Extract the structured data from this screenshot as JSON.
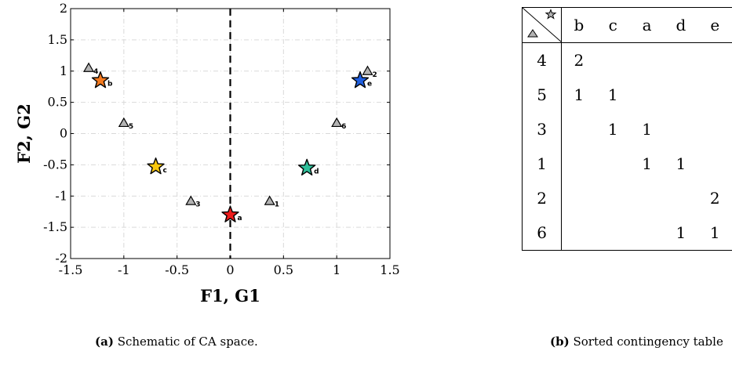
{
  "chart_data": {
    "type": "scatter",
    "title": "",
    "xlabel": "F1, G1",
    "ylabel": "F2, G2",
    "xlim": [
      -1.5,
      1.5
    ],
    "ylim": [
      -2,
      2
    ],
    "xticks": [
      -1.5,
      -1,
      -0.5,
      0,
      0.5,
      1,
      1.5
    ],
    "xtick_labels": [
      "-1.5",
      "-1",
      "-0.5",
      "0",
      "0.5",
      "1",
      "1.5"
    ],
    "yticks": [
      -2,
      -1.5,
      -1,
      -0.5,
      0,
      0.5,
      1,
      1.5,
      2
    ],
    "ytick_labels": [
      "-2",
      "-1.5",
      "-1",
      "-0.5",
      "0",
      "0.5",
      "1",
      "1.5",
      "2"
    ],
    "grid": true,
    "vertical_reference_line": 0,
    "stars": [
      {
        "label": "a",
        "x": 0.0,
        "y": -1.3,
        "color": "#ee1c1c"
      },
      {
        "label": "b",
        "x": -1.22,
        "y": 0.85,
        "color": "#f47a1f"
      },
      {
        "label": "c",
        "x": -0.7,
        "y": -0.53,
        "color": "#f9c80e"
      },
      {
        "label": "d",
        "x": 0.72,
        "y": -0.55,
        "color": "#2fbf9a"
      },
      {
        "label": "e",
        "x": 1.22,
        "y": 0.85,
        "color": "#1f5fe0"
      }
    ],
    "triangles": [
      {
        "label": "1",
        "x": 0.37,
        "y": -1.08,
        "color": "#b3b3b3"
      },
      {
        "label": "2",
        "x": 1.29,
        "y": 1.0,
        "color": "#b3b3b3"
      },
      {
        "label": "3",
        "x": -0.37,
        "y": -1.08,
        "color": "#b3b3b3"
      },
      {
        "label": "4",
        "x": -1.33,
        "y": 1.05,
        "color": "#b3b3b3"
      },
      {
        "label": "5",
        "x": -1.0,
        "y": 0.17,
        "color": "#b3b3b3"
      },
      {
        "label": "6",
        "x": 1.0,
        "y": 0.17,
        "color": "#b3b3b3"
      }
    ]
  },
  "captions": {
    "a": {
      "tag": "(a)",
      "text": "Schematic of CA space."
    },
    "b": {
      "tag": "(b)",
      "text": "Sorted contingency table"
    }
  },
  "table": {
    "columns": [
      "b",
      "c",
      "a",
      "d",
      "e"
    ],
    "rows": [
      {
        "label": "4",
        "cells": [
          "2",
          "",
          "",
          "",
          ""
        ]
      },
      {
        "label": "5",
        "cells": [
          "1",
          "1",
          "",
          "",
          ""
        ]
      },
      {
        "label": "3",
        "cells": [
          "",
          "1",
          "1",
          "",
          ""
        ]
      },
      {
        "label": "1",
        "cells": [
          "",
          "",
          "1",
          "1",
          ""
        ]
      },
      {
        "label": "2",
        "cells": [
          "",
          "",
          "",
          "",
          "2"
        ]
      },
      {
        "label": "6",
        "cells": [
          "",
          "",
          "",
          "1",
          "1"
        ]
      }
    ]
  }
}
